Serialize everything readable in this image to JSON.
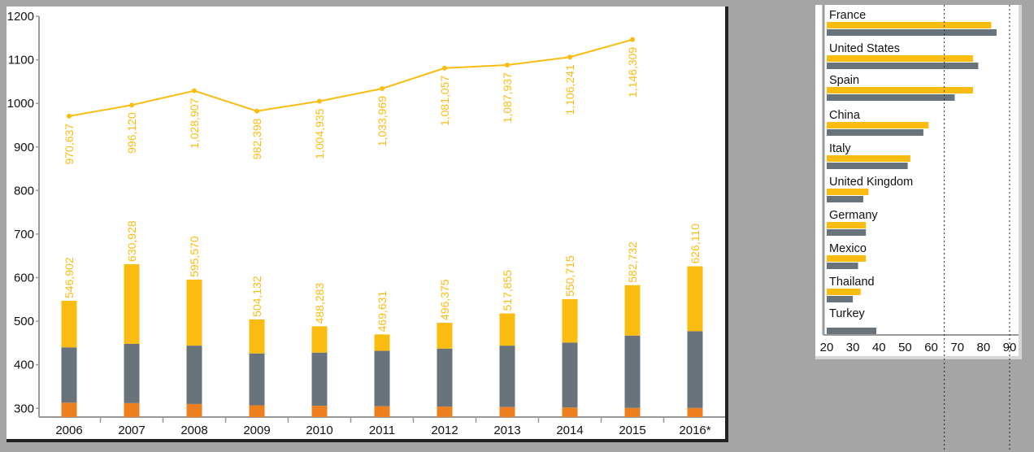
{
  "colors": {
    "yellow": "#fbbc11",
    "gray": "#69737b",
    "orange": "#ee7f1e",
    "axis": "#9a9a9a"
  },
  "chart_data": [
    {
      "type": "bar+line",
      "categories": [
        "2006",
        "2007",
        "2008",
        "2009",
        "2010",
        "2011",
        "2012",
        "2013",
        "2014",
        "2015",
        "2016*"
      ],
      "ylim": [
        280,
        1200
      ],
      "yticks": [
        300,
        400,
        500,
        600,
        700,
        800,
        900,
        1000,
        1100,
        1200
      ],
      "line_series": {
        "values": [
          970.637,
          996.12,
          1028.907,
          982.398,
          1004.935,
          1033.969,
          1081.057,
          1087.937,
          1106.241,
          1146.309
        ],
        "labels": [
          "970,637",
          "996,120",
          "1,028,907",
          "982,398",
          "1,004,935",
          "1,033,969",
          "1,081,057",
          "1,087,937",
          "1,106,241",
          "1,146,309"
        ]
      },
      "stacked_bars": {
        "series": [
          {
            "color": "orange",
            "values": [
              313,
              312,
              310,
              307,
              306,
              305,
              304,
              303,
              302,
              301,
              301
            ]
          },
          {
            "color": "gray",
            "values": [
              440,
              448,
              444,
              426,
              428,
              432,
              437,
              444,
              451,
              467,
              477
            ]
          },
          {
            "color": "yellow",
            "values": [
              546.902,
              630.928,
              595.57,
              504.132,
              488.283,
              469.631,
              496.375,
              517.855,
              550.715,
              582.732,
              626.11
            ]
          }
        ],
        "labels": [
          "546,902",
          "630,928",
          "595,570",
          "504,132",
          "488,283",
          "469,631",
          "496,375",
          "517,855",
          "550,715",
          "582,732",
          "626,110"
        ]
      }
    },
    {
      "type": "bar",
      "orientation": "horizontal",
      "categories": [
        "France",
        "United States",
        "Spain",
        "China",
        "Italy",
        "United Kingdom",
        "Germany",
        "Mexico",
        "Thailand",
        "Turkey"
      ],
      "series": [
        {
          "color": "yellow",
          "values": [
            83,
            76,
            76,
            59,
            52,
            36,
            35,
            35,
            33,
            null
          ]
        },
        {
          "color": "gray",
          "values": [
            85,
            78,
            69,
            57,
            51,
            34,
            35,
            32,
            30,
            39
          ]
        }
      ],
      "xlim": [
        20,
        90
      ],
      "xticks": [
        20,
        30,
        40,
        50,
        60,
        70,
        80,
        90
      ],
      "reference_lines": [
        65,
        90
      ]
    }
  ]
}
